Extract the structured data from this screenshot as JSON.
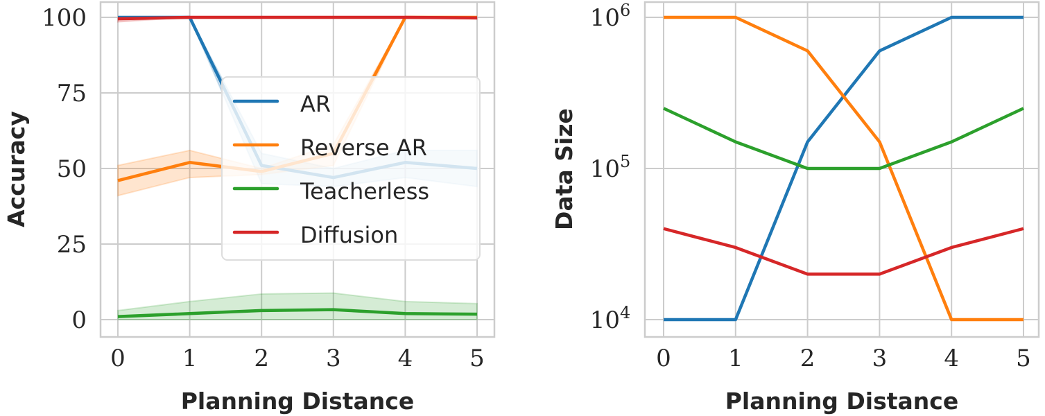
{
  "chart_data": [
    {
      "type": "line",
      "xlabel": "Planning Distance",
      "ylabel": "Accuracy",
      "x": [
        0,
        1,
        2,
        3,
        4,
        5
      ],
      "xticks": [
        "0",
        "1",
        "2",
        "3",
        "4",
        "5"
      ],
      "yticks": [
        "0",
        "25",
        "50",
        "75",
        "100"
      ],
      "ylim": [
        -5,
        104
      ],
      "grid": true,
      "legend": {
        "placement": "center-right",
        "entries": [
          "AR",
          "Reverse AR",
          "Teacherless",
          "Diffusion"
        ]
      },
      "series": [
        {
          "name": "AR",
          "color": "#1f77b4",
          "values": [
            100,
            100,
            51,
            47,
            52,
            50
          ],
          "lower": [
            100,
            100,
            45,
            44,
            47,
            44
          ],
          "upper": [
            100,
            100,
            55,
            50,
            56,
            56
          ]
        },
        {
          "name": "Reverse AR",
          "color": "#ff7f0e",
          "values": [
            46,
            52,
            49,
            55,
            100,
            100
          ],
          "lower": [
            41,
            47,
            48,
            51,
            100,
            100
          ],
          "upper": [
            51,
            56,
            50,
            58,
            100,
            100
          ]
        },
        {
          "name": "Teacherless",
          "color": "#2ca02c",
          "values": [
            1,
            2,
            3,
            3.3,
            2,
            1.8
          ],
          "lower": [
            0,
            0,
            0,
            0,
            0,
            0
          ],
          "upper": [
            3,
            6,
            8.5,
            8.8,
            6,
            5.3
          ]
        },
        {
          "name": "Diffusion",
          "color": "#d62728",
          "values": [
            99.5,
            100,
            100,
            100,
            100,
            99.8
          ],
          "lower": [
            98.5,
            100,
            100,
            100,
            100,
            99.5
          ],
          "upper": [
            100,
            100,
            100,
            100,
            100,
            100
          ]
        }
      ]
    },
    {
      "type": "line",
      "xlabel": "Planning Distance",
      "ylabel": "Data Size",
      "yscale": "log",
      "x": [
        0,
        1,
        2,
        3,
        4,
        5
      ],
      "xticks": [
        "0",
        "1",
        "2",
        "3",
        "4",
        "5"
      ],
      "yticks": [
        "4",
        "5",
        "6"
      ],
      "ylim": [
        7000,
        1150000
      ],
      "grid": true,
      "series": [
        {
          "name": "AR",
          "color": "#1f77b4",
          "values": [
            10000,
            10000,
            150000,
            600000,
            1000000,
            1000000
          ]
        },
        {
          "name": "Reverse AR",
          "color": "#ff7f0e",
          "values": [
            1000000,
            1000000,
            600000,
            150000,
            10000,
            10000
          ]
        },
        {
          "name": "Teacherless",
          "color": "#2ca02c",
          "values": [
            250000,
            150000,
            100000,
            100000,
            150000,
            250000
          ]
        },
        {
          "name": "Diffusion",
          "color": "#d62728",
          "values": [
            40000,
            30000,
            20000,
            20000,
            30000,
            40000
          ]
        }
      ]
    }
  ]
}
